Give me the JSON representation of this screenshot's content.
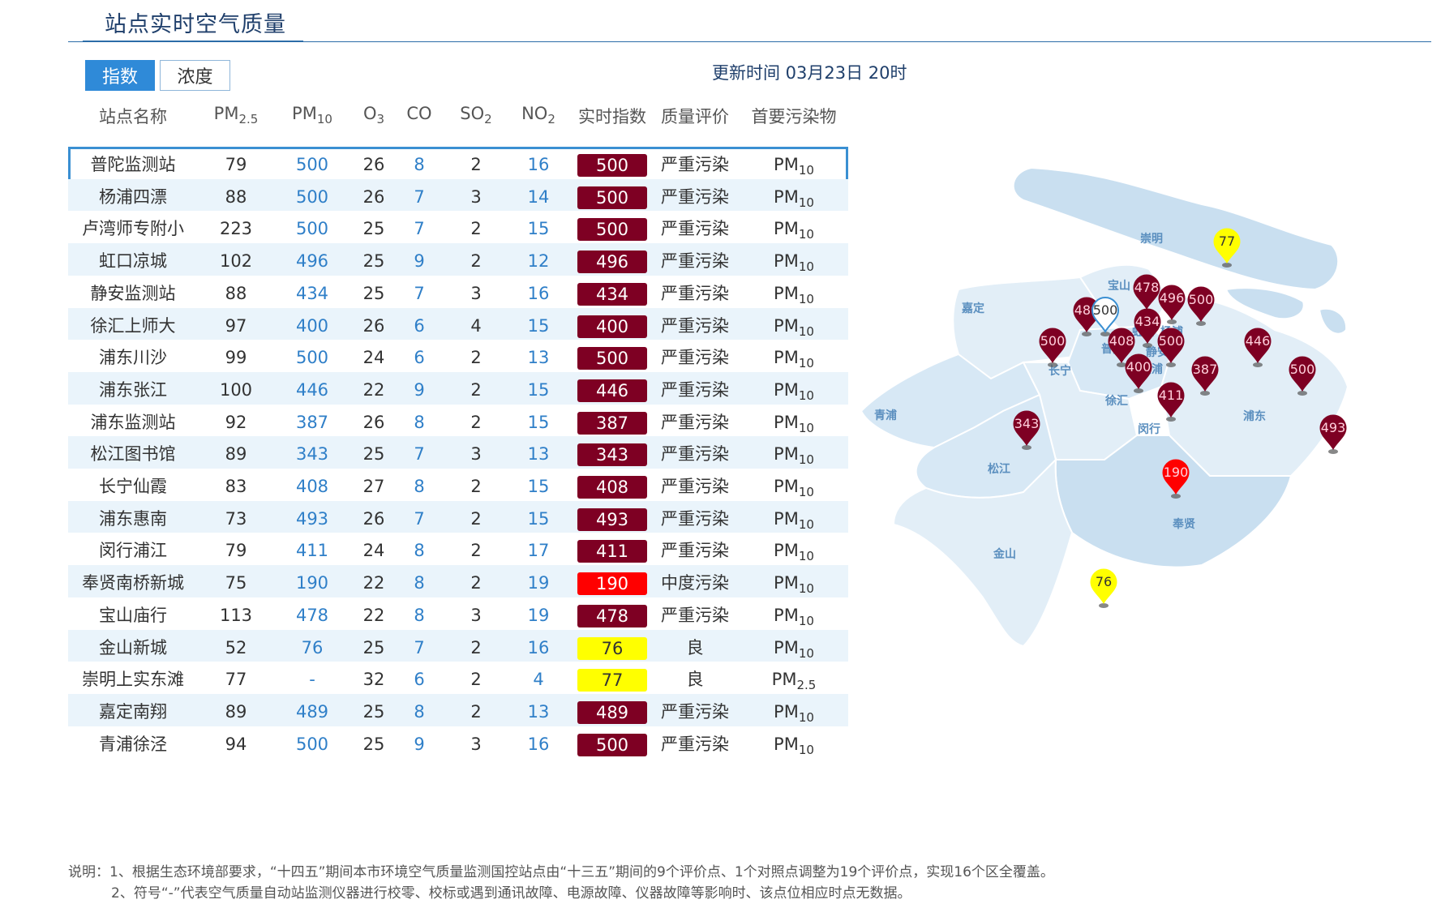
{
  "header": {
    "title": "站点实时空气质量"
  },
  "tabs": [
    {
      "label": "指数",
      "active": true
    },
    {
      "label": "浓度",
      "active": false
    }
  ],
  "update_time": "更新时间 03月23日 20时",
  "columns": {
    "station": "站点名称",
    "pm25": "PM",
    "pm25_sub": "2.5",
    "pm10": "PM",
    "pm10_sub": "10",
    "o3": "O",
    "o3_sub": "3",
    "co": "CO",
    "so2": "SO",
    "so2_sub": "2",
    "no2": "NO",
    "no2_sub": "2",
    "aqi": "实时指数",
    "quality": "质量评价",
    "primary": "首要污染物"
  },
  "level_colors": {
    "severe": "#7e0023",
    "moderate": "#ff0000",
    "good": "#ffff00"
  },
  "rows": [
    {
      "station": "普陀监测站",
      "pm25": "79",
      "pm10": "500",
      "o3": "26",
      "co": "8",
      "so2": "2",
      "no2": "16",
      "aqi": "500",
      "quality": "严重污染",
      "primary": "PM",
      "primary_sub": "10",
      "level": "severe",
      "selected": true
    },
    {
      "station": "杨浦四漂",
      "pm25": "88",
      "pm10": "500",
      "o3": "26",
      "co": "7",
      "so2": "3",
      "no2": "14",
      "aqi": "500",
      "quality": "严重污染",
      "primary": "PM",
      "primary_sub": "10",
      "level": "severe"
    },
    {
      "station": "卢湾师专附小",
      "pm25": "223",
      "pm10": "500",
      "o3": "25",
      "co": "7",
      "so2": "2",
      "no2": "15",
      "aqi": "500",
      "quality": "严重污染",
      "primary": "PM",
      "primary_sub": "10",
      "level": "severe"
    },
    {
      "station": "虹口凉城",
      "pm25": "102",
      "pm10": "496",
      "o3": "25",
      "co": "9",
      "so2": "2",
      "no2": "12",
      "aqi": "496",
      "quality": "严重污染",
      "primary": "PM",
      "primary_sub": "10",
      "level": "severe"
    },
    {
      "station": "静安监测站",
      "pm25": "88",
      "pm10": "434",
      "o3": "25",
      "co": "7",
      "so2": "3",
      "no2": "16",
      "aqi": "434",
      "quality": "严重污染",
      "primary": "PM",
      "primary_sub": "10",
      "level": "severe"
    },
    {
      "station": "徐汇上师大",
      "pm25": "97",
      "pm10": "400",
      "o3": "26",
      "co": "6",
      "so2": "4",
      "no2": "15",
      "aqi": "400",
      "quality": "严重污染",
      "primary": "PM",
      "primary_sub": "10",
      "level": "severe"
    },
    {
      "station": "浦东川沙",
      "pm25": "99",
      "pm10": "500",
      "o3": "24",
      "co": "6",
      "so2": "2",
      "no2": "13",
      "aqi": "500",
      "quality": "严重污染",
      "primary": "PM",
      "primary_sub": "10",
      "level": "severe"
    },
    {
      "station": "浦东张江",
      "pm25": "100",
      "pm10": "446",
      "o3": "22",
      "co": "9",
      "so2": "2",
      "no2": "15",
      "aqi": "446",
      "quality": "严重污染",
      "primary": "PM",
      "primary_sub": "10",
      "level": "severe"
    },
    {
      "station": "浦东监测站",
      "pm25": "92",
      "pm10": "387",
      "o3": "26",
      "co": "8",
      "so2": "2",
      "no2": "15",
      "aqi": "387",
      "quality": "严重污染",
      "primary": "PM",
      "primary_sub": "10",
      "level": "severe"
    },
    {
      "station": "松江图书馆",
      "pm25": "89",
      "pm10": "343",
      "o3": "25",
      "co": "7",
      "so2": "3",
      "no2": "13",
      "aqi": "343",
      "quality": "严重污染",
      "primary": "PM",
      "primary_sub": "10",
      "level": "severe"
    },
    {
      "station": "长宁仙霞",
      "pm25": "83",
      "pm10": "408",
      "o3": "27",
      "co": "8",
      "so2": "2",
      "no2": "15",
      "aqi": "408",
      "quality": "严重污染",
      "primary": "PM",
      "primary_sub": "10",
      "level": "severe"
    },
    {
      "station": "浦东惠南",
      "pm25": "73",
      "pm10": "493",
      "o3": "26",
      "co": "7",
      "so2": "2",
      "no2": "15",
      "aqi": "493",
      "quality": "严重污染",
      "primary": "PM",
      "primary_sub": "10",
      "level": "severe"
    },
    {
      "station": "闵行浦江",
      "pm25": "79",
      "pm10": "411",
      "o3": "24",
      "co": "8",
      "so2": "2",
      "no2": "17",
      "aqi": "411",
      "quality": "严重污染",
      "primary": "PM",
      "primary_sub": "10",
      "level": "severe"
    },
    {
      "station": "奉贤南桥新城",
      "pm25": "75",
      "pm10": "190",
      "o3": "22",
      "co": "8",
      "so2": "2",
      "no2": "19",
      "aqi": "190",
      "quality": "中度污染",
      "primary": "PM",
      "primary_sub": "10",
      "level": "moderate"
    },
    {
      "station": "宝山庙行",
      "pm25": "113",
      "pm10": "478",
      "o3": "22",
      "co": "8",
      "so2": "3",
      "no2": "19",
      "aqi": "478",
      "quality": "严重污染",
      "primary": "PM",
      "primary_sub": "10",
      "level": "severe"
    },
    {
      "station": "金山新城",
      "pm25": "52",
      "pm10": "76",
      "o3": "25",
      "co": "7",
      "so2": "2",
      "no2": "16",
      "aqi": "76",
      "quality": "良",
      "primary": "PM",
      "primary_sub": "10",
      "level": "good"
    },
    {
      "station": "崇明上实东滩",
      "pm25": "77",
      "pm10": "-",
      "o3": "32",
      "co": "6",
      "so2": "2",
      "no2": "4",
      "aqi": "77",
      "quality": "良",
      "primary": "PM",
      "primary_sub": "2.5",
      "level": "good"
    },
    {
      "station": "嘉定南翔",
      "pm25": "89",
      "pm10": "489",
      "o3": "25",
      "co": "8",
      "so2": "2",
      "no2": "13",
      "aqi": "489",
      "quality": "严重污染",
      "primary": "PM",
      "primary_sub": "10",
      "level": "severe"
    },
    {
      "station": "青浦徐泾",
      "pm25": "94",
      "pm10": "500",
      "o3": "25",
      "co": "9",
      "so2": "3",
      "no2": "16",
      "aqi": "500",
      "quality": "严重污染",
      "primary": "PM",
      "primary_sub": "10",
      "level": "severe"
    }
  ],
  "map": {
    "districts": [
      "崇明",
      "宝山",
      "嘉定",
      "虹口",
      "杨浦",
      "普陀",
      "静安",
      "长宁",
      "黄浦",
      "青浦",
      "徐汇",
      "闵行",
      "浦东",
      "松江",
      "奉贤",
      "金山"
    ],
    "markers": [
      {
        "value": "77",
        "level": "good"
      },
      {
        "value": "478",
        "level": "severe"
      },
      {
        "value": "496",
        "level": "severe"
      },
      {
        "value": "500",
        "level": "severe"
      },
      {
        "value": "489",
        "level": "severe"
      },
      {
        "value": "500",
        "level": "selected"
      },
      {
        "value": "434",
        "level": "severe"
      },
      {
        "value": "500",
        "level": "severe"
      },
      {
        "value": "408",
        "level": "severe"
      },
      {
        "value": "500",
        "level": "severe"
      },
      {
        "value": "446",
        "level": "severe"
      },
      {
        "value": "400",
        "level": "severe"
      },
      {
        "value": "387",
        "level": "severe"
      },
      {
        "value": "500",
        "level": "severe"
      },
      {
        "value": "411",
        "level": "severe"
      },
      {
        "value": "343",
        "level": "severe"
      },
      {
        "value": "493",
        "level": "severe"
      },
      {
        "value": "190",
        "level": "moderate"
      },
      {
        "value": "76",
        "level": "good"
      }
    ]
  },
  "notes": [
    "说明：1、根据生态环境部要求，“十四五”期间本市环境空气质量监测国控站点由“十三五”期间的9个评价点、1个对照点调整为19个评价点，实现16个区全覆盖。",
    "2、符号“-”代表空气质量自动站监测仪器进行校零、校标或遇到通讯故障、电源故障、仪器故障等影响时、该点位相应时点无数据。"
  ]
}
